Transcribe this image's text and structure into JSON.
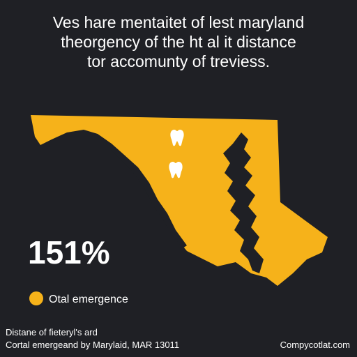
{
  "header": {
    "title_lines": [
      "Ves hare mentaitet of lest maryland",
      "theorgency of the ht al it distance",
      "tor accomunty of treviess."
    ]
  },
  "stat": {
    "value": "151%"
  },
  "legend": {
    "label": "Otal emergence"
  },
  "footer": {
    "left_lines": [
      "Distane of fieteryl's ard",
      "Cortal emergeand by Marylaid, MAR 13011"
    ],
    "right": "Compycotlat.com"
  }
}
